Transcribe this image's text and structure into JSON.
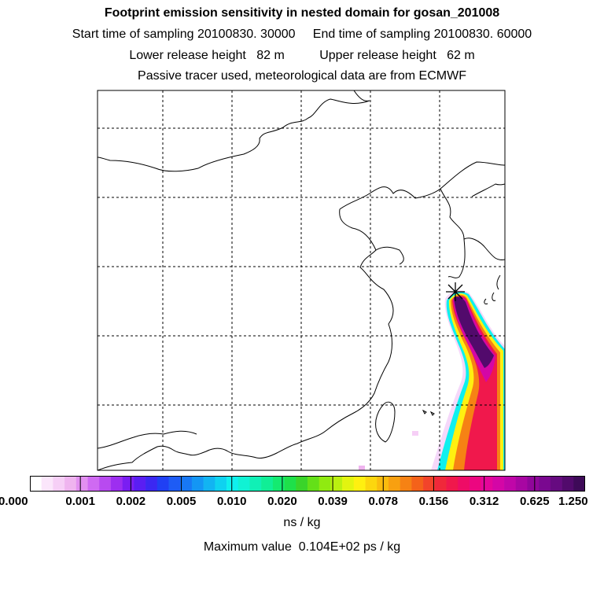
{
  "header": {
    "title": "Footprint emission sensitivity in nested domain for gosan_201008",
    "line2": "Start time of sampling 20100830. 30000     End time of sampling 20100830. 60000",
    "line3": "Lower release height   82 m          Upper release height   62 m",
    "line4": "Passive tracer used, meteorological data are from ECMWF"
  },
  "colorbar": {
    "tick_labels": [
      "0.000",
      "0.001",
      "0.002",
      "0.005",
      "0.010",
      "0.020",
      "0.039",
      "0.078",
      "0.156",
      "0.312",
      "0.625",
      "1.250"
    ],
    "colors": [
      "#ffffff",
      "#fbe6fb",
      "#f6cff6",
      "#efb4ef",
      "#e290f0",
      "#cf6af2",
      "#b84af0",
      "#9d2ef0",
      "#7a1ef2",
      "#5a1ef2",
      "#3b28f2",
      "#2040f4",
      "#1e5cf5",
      "#1878f5",
      "#1496f4",
      "#12b4f2",
      "#0fd2f0",
      "#0ff0ee",
      "#10f2d4",
      "#10f0b6",
      "#10ee96",
      "#14ea70",
      "#1ee04a",
      "#3ad42a",
      "#64e018",
      "#90ea10",
      "#baf010",
      "#e2f410",
      "#fff010",
      "#fcd60e",
      "#fabc0e",
      "#f8a010",
      "#f68214",
      "#f4621a",
      "#f2442a",
      "#f0283a",
      "#f0184c",
      "#ee0c66",
      "#ec0680",
      "#e4069a",
      "#d406a6",
      "#c006a8",
      "#a806a2",
      "#90069a",
      "#7a0890",
      "#660a80",
      "#520a6c",
      "#3e0a58"
    ],
    "units": "ns / kg"
  },
  "max_value_text": "Maximum value  0.104E+02 ps / kg"
}
